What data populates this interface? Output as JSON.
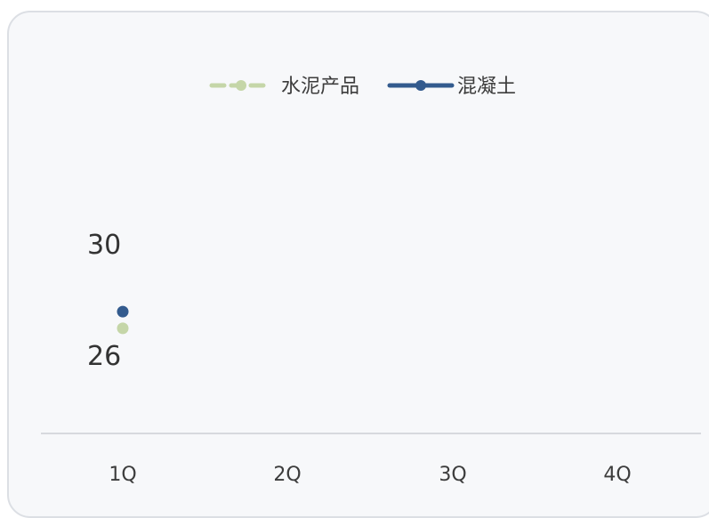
{
  "chart_data": {
    "type": "line",
    "categories": [
      "1Q",
      "2Q",
      "3Q",
      "4Q"
    ],
    "series": [
      {
        "name": "水泥产品",
        "values": [
          26.9,
          null,
          null,
          null
        ],
        "color": "#c5d6a8",
        "style": "dashed"
      },
      {
        "name": "混凝土",
        "values": [
          27.5,
          null,
          null,
          null
        ],
        "color": "#335b8e",
        "style": "solid"
      }
    ],
    "axis_value_labels": [
      "30",
      "26"
    ],
    "legend_position": "top-center",
    "grid": false
  }
}
